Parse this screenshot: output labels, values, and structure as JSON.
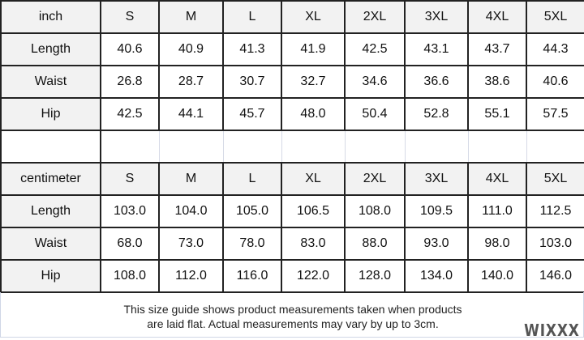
{
  "sizes": [
    "S",
    "M",
    "L",
    "XL",
    "2XL",
    "3XL",
    "4XL",
    "5XL"
  ],
  "inch": {
    "unit": "inch",
    "rows": [
      {
        "label": "Length",
        "values": [
          "40.6",
          "40.9",
          "41.3",
          "41.9",
          "42.5",
          "43.1",
          "43.7",
          "44.3"
        ]
      },
      {
        "label": "Waist",
        "values": [
          "26.8",
          "28.7",
          "30.7",
          "32.7",
          "34.6",
          "36.6",
          "38.6",
          "40.6"
        ]
      },
      {
        "label": "Hip",
        "values": [
          "42.5",
          "44.1",
          "45.7",
          "48.0",
          "50.4",
          "52.8",
          "55.1",
          "57.5"
        ]
      }
    ]
  },
  "cm": {
    "unit": "centimeter",
    "rows": [
      {
        "label": "Length",
        "values": [
          "103.0",
          "104.0",
          "105.0",
          "106.5",
          "108.0",
          "109.5",
          "111.0",
          "112.5"
        ]
      },
      {
        "label": "Waist",
        "values": [
          "68.0",
          "73.0",
          "78.0",
          "83.0",
          "88.0",
          "93.0",
          "98.0",
          "103.0"
        ]
      },
      {
        "label": "Hip",
        "values": [
          "108.0",
          "112.0",
          "116.0",
          "122.0",
          "128.0",
          "134.0",
          "140.0",
          "146.0"
        ]
      }
    ]
  },
  "footer": {
    "line1": "This size guide shows product measurements taken when products",
    "line2": "are laid flat. Actual measurements may vary by up to 3cm.",
    "logo": "WIXXX"
  }
}
